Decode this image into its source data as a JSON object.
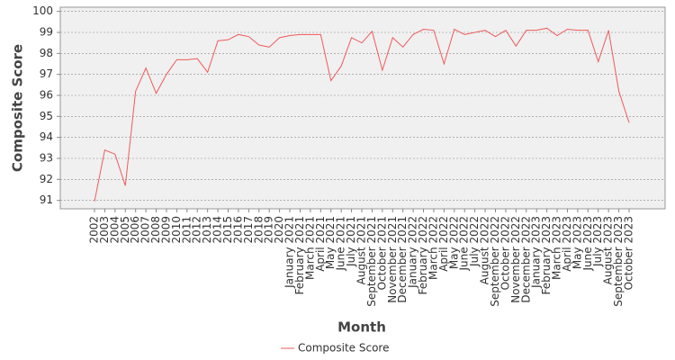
{
  "chart_data": {
    "type": "line",
    "x_label": "Month",
    "y_label": "Composite Score",
    "categories": [
      "2002",
      "2003",
      "2004",
      "2005",
      "2006",
      "2007",
      "2008",
      "2009",
      "2010",
      "2011",
      "2012",
      "2013",
      "2014",
      "2015",
      "2016",
      "2017",
      "2018",
      "2019",
      "2020",
      "January 2021",
      "February 2021",
      "March 2021",
      "April 2021",
      "May 2021",
      "June 2021",
      "July 2021",
      "August 2021",
      "September 2021",
      "October 2021",
      "November 2021",
      "December 2021",
      "January 2022",
      "February 2022",
      "March 2022",
      "April 2022",
      "May 2022",
      "June 2022",
      "July 2022",
      "August 2022",
      "September 2022",
      "October 2022",
      "November 2022",
      "December 2022",
      "January 2023",
      "February 2023",
      "March 2023",
      "April 2023",
      "May 2023",
      "June 2023",
      "July 2023",
      "August 2023",
      "September 2023",
      "October 2023"
    ],
    "series": [
      {
        "name": "Composite Score",
        "color": "#f05a5a",
        "values": [
          90.95,
          93.4,
          93.2,
          91.7,
          96.2,
          97.3,
          96.1,
          97.0,
          97.7,
          97.7,
          97.75,
          97.1,
          98.6,
          98.65,
          98.9,
          98.8,
          98.4,
          98.3,
          98.75,
          98.85,
          98.9,
          98.9,
          98.9,
          96.7,
          97.4,
          98.75,
          98.5,
          99.05,
          97.2,
          98.75,
          98.3,
          98.9,
          99.15,
          99.1,
          97.5,
          99.15,
          98.9,
          99.0,
          99.1,
          98.8,
          99.1,
          98.35,
          99.1,
          99.1,
          99.2,
          98.85,
          99.15,
          99.1,
          99.1,
          97.6,
          99.1,
          96.2,
          94.7
        ]
      }
    ],
    "ylim": [
      90.6,
      100.2
    ],
    "yticks": [
      91,
      92,
      93,
      94,
      95,
      96,
      97,
      98,
      99,
      100
    ],
    "grid": true,
    "legend": "bottom"
  }
}
